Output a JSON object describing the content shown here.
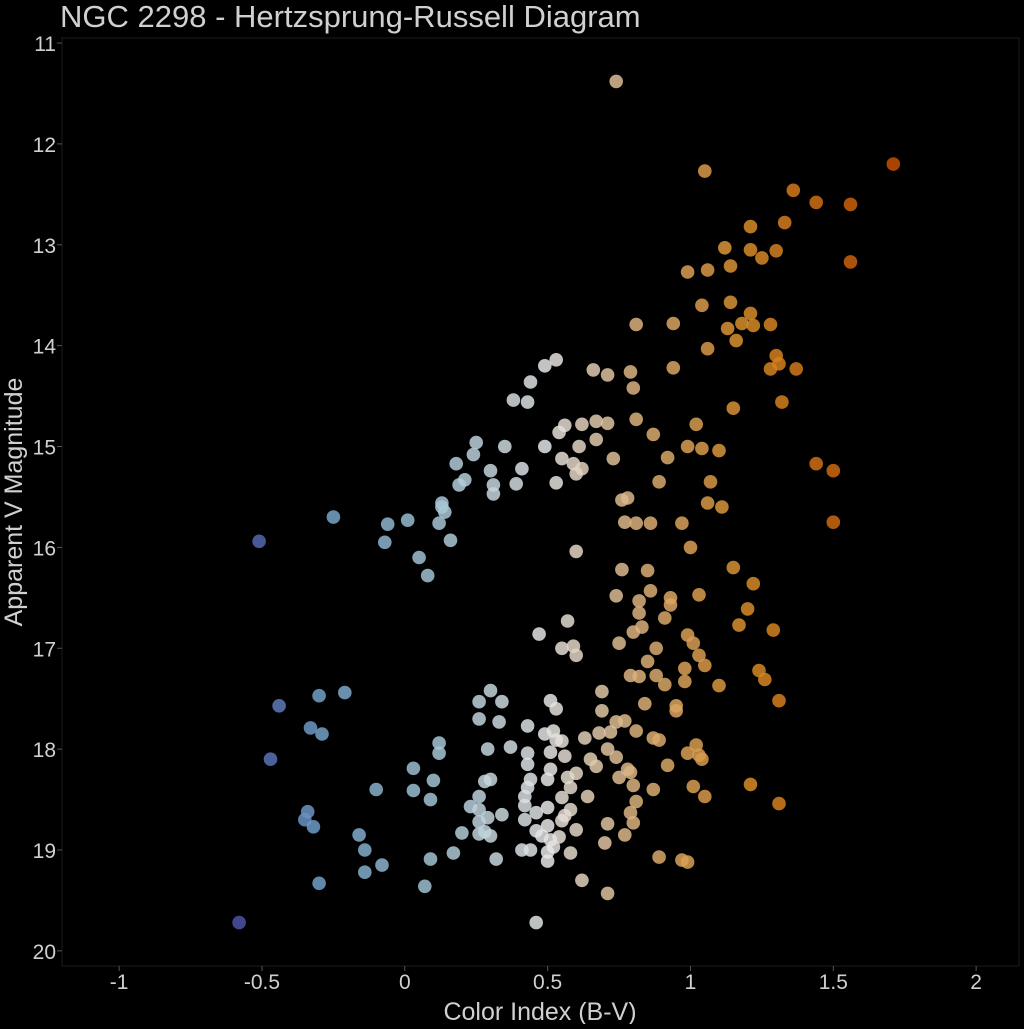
{
  "chart_data": {
    "type": "scatter",
    "title": "NGC 2298 - Hertzsprung-Russell Diagram",
    "xlabel": "Color Index (B-V)",
    "ylabel": "Apparent V Magnitude",
    "xlim": [
      -1.2,
      2.15
    ],
    "ylim": [
      20.15,
      10.95
    ],
    "y_inverted": true,
    "grid": false,
    "x_ticks": [
      -1,
      -0.5,
      0,
      0.5,
      1,
      1.5,
      2
    ],
    "x_tick_labels": [
      "-1",
      "-0.5",
      "0",
      "0.5",
      "1",
      "1.5",
      "2"
    ],
    "y_ticks": [
      11,
      12,
      13,
      14,
      15,
      16,
      17,
      18,
      19,
      20
    ],
    "y_tick_labels": [
      "11",
      "12",
      "13",
      "14",
      "15",
      "16",
      "17",
      "18",
      "19",
      "20"
    ],
    "colors": {
      "background": "#000000",
      "text": "#d0d0d0",
      "frame": "#1c1c1c"
    },
    "points": [
      [
        0.74,
        11.38
      ],
      [
        1.71,
        12.2
      ],
      [
        1.05,
        12.27
      ],
      [
        1.36,
        12.46
      ],
      [
        1.44,
        12.58
      ],
      [
        1.56,
        12.6
      ],
      [
        1.33,
        12.78
      ],
      [
        1.21,
        12.82
      ],
      [
        1.12,
        13.03
      ],
      [
        1.21,
        13.05
      ],
      [
        1.3,
        13.06
      ],
      [
        1.25,
        13.13
      ],
      [
        1.56,
        13.17
      ],
      [
        0.99,
        13.27
      ],
      [
        1.06,
        13.25
      ],
      [
        1.14,
        13.21
      ],
      [
        1.04,
        13.6
      ],
      [
        1.14,
        13.57
      ],
      [
        1.21,
        13.68
      ],
      [
        0.81,
        13.79
      ],
      [
        0.94,
        13.78
      ],
      [
        1.13,
        13.83
      ],
      [
        1.18,
        13.78
      ],
      [
        1.22,
        13.8
      ],
      [
        1.28,
        13.79
      ],
      [
        1.16,
        13.95
      ],
      [
        1.06,
        14.03
      ],
      [
        0.53,
        14.14
      ],
      [
        0.49,
        14.2
      ],
      [
        0.66,
        14.24
      ],
      [
        0.71,
        14.29
      ],
      [
        0.79,
        14.26
      ],
      [
        0.94,
        14.22
      ],
      [
        1.3,
        14.1
      ],
      [
        1.31,
        14.18
      ],
      [
        1.28,
        14.23
      ],
      [
        1.37,
        14.23
      ],
      [
        0.44,
        14.36
      ],
      [
        0.8,
        14.42
      ],
      [
        0.38,
        14.54
      ],
      [
        0.43,
        14.56
      ],
      [
        1.32,
        14.56
      ],
      [
        1.15,
        14.62
      ],
      [
        0.56,
        14.79
      ],
      [
        0.62,
        14.78
      ],
      [
        0.67,
        14.75
      ],
      [
        0.71,
        14.77
      ],
      [
        0.81,
        14.73
      ],
      [
        0.87,
        14.88
      ],
      [
        1.02,
        14.78
      ],
      [
        0.54,
        14.86
      ],
      [
        0.25,
        14.96
      ],
      [
        0.35,
        15.0
      ],
      [
        0.49,
        15.0
      ],
      [
        0.61,
        15.0
      ],
      [
        0.67,
        14.93
      ],
      [
        0.99,
        15.0
      ],
      [
        1.04,
        15.02
      ],
      [
        1.1,
        15.04
      ],
      [
        0.24,
        15.08
      ],
      [
        0.55,
        15.12
      ],
      [
        0.41,
        15.22
      ],
      [
        0.59,
        15.17
      ],
      [
        0.62,
        15.22
      ],
      [
        0.73,
        15.12
      ],
      [
        0.92,
        15.11
      ],
      [
        0.18,
        15.17
      ],
      [
        0.3,
        15.24
      ],
      [
        0.6,
        15.27
      ],
      [
        0.21,
        15.33
      ],
      [
        0.31,
        15.38
      ],
      [
        0.19,
        15.38
      ],
      [
        0.39,
        15.37
      ],
      [
        0.53,
        15.36
      ],
      [
        0.89,
        15.35
      ],
      [
        1.07,
        15.35
      ],
      [
        1.44,
        15.17
      ],
      [
        1.5,
        15.24
      ],
      [
        0.31,
        15.47
      ],
      [
        0.78,
        15.51
      ],
      [
        0.76,
        15.53
      ],
      [
        0.13,
        15.56
      ],
      [
        0.13,
        15.6
      ],
      [
        -0.25,
        15.7
      ],
      [
        0.01,
        15.73
      ],
      [
        0.12,
        15.76
      ],
      [
        0.14,
        15.65
      ],
      [
        -0.06,
        15.77
      ],
      [
        0.77,
        15.75
      ],
      [
        0.81,
        15.76
      ],
      [
        0.86,
        15.76
      ],
      [
        0.97,
        15.76
      ],
      [
        1.06,
        15.56
      ],
      [
        1.11,
        15.6
      ],
      [
        1.5,
        15.75
      ],
      [
        -0.51,
        15.94
      ],
      [
        -0.07,
        15.95
      ],
      [
        0.16,
        15.93
      ],
      [
        0.6,
        16.04
      ],
      [
        1.0,
        16.0
      ],
      [
        0.05,
        16.1
      ],
      [
        0.08,
        16.28
      ],
      [
        0.76,
        16.22
      ],
      [
        0.85,
        16.23
      ],
      [
        1.15,
        16.2
      ],
      [
        1.22,
        16.36
      ],
      [
        0.86,
        16.43
      ],
      [
        0.74,
        16.48
      ],
      [
        0.82,
        16.53
      ],
      [
        0.93,
        16.5
      ],
      [
        1.03,
        16.47
      ],
      [
        1.2,
        16.61
      ],
      [
        0.93,
        16.57
      ],
      [
        0.57,
        16.73
      ],
      [
        0.82,
        16.65
      ],
      [
        0.91,
        16.7
      ],
      [
        1.17,
        16.77
      ],
      [
        0.83,
        16.79
      ],
      [
        0.47,
        16.86
      ],
      [
        0.8,
        16.84
      ],
      [
        0.99,
        16.87
      ],
      [
        0.55,
        17.0
      ],
      [
        0.59,
        16.98
      ],
      [
        0.6,
        17.07
      ],
      [
        0.75,
        16.95
      ],
      [
        0.88,
        17.0
      ],
      [
        1.01,
        16.95
      ],
      [
        1.29,
        16.82
      ],
      [
        1.03,
        17.07
      ],
      [
        0.85,
        17.13
      ],
      [
        0.98,
        17.2
      ],
      [
        1.05,
        17.17
      ],
      [
        1.24,
        17.22
      ],
      [
        0.79,
        17.27
      ],
      [
        0.82,
        17.28
      ],
      [
        0.88,
        17.27
      ],
      [
        0.91,
        17.36
      ],
      [
        0.98,
        17.33
      ],
      [
        1.1,
        17.37
      ],
      [
        1.26,
        17.31
      ],
      [
        -0.21,
        17.44
      ],
      [
        0.3,
        17.42
      ],
      [
        0.69,
        17.43
      ],
      [
        -0.3,
        17.47
      ],
      [
        0.84,
        17.55
      ],
      [
        0.51,
        17.52
      ],
      [
        -0.44,
        17.57
      ],
      [
        0.26,
        17.53
      ],
      [
        0.34,
        17.53
      ],
      [
        0.53,
        17.6
      ],
      [
        0.69,
        17.62
      ],
      [
        0.95,
        17.57
      ],
      [
        0.95,
        17.62
      ],
      [
        1.31,
        17.52
      ],
      [
        0.26,
        17.7
      ],
      [
        0.33,
        17.73
      ],
      [
        0.43,
        17.77
      ],
      [
        0.74,
        17.73
      ],
      [
        0.77,
        17.72
      ],
      [
        -0.33,
        17.79
      ],
      [
        -0.29,
        17.85
      ],
      [
        0.49,
        17.85
      ],
      [
        0.52,
        17.82
      ],
      [
        0.68,
        17.84
      ],
      [
        0.72,
        17.83
      ],
      [
        0.81,
        17.82
      ],
      [
        0.55,
        17.92
      ],
      [
        0.53,
        17.91
      ],
      [
        0.63,
        17.89
      ],
      [
        0.87,
        17.89
      ],
      [
        0.89,
        17.91
      ],
      [
        0.12,
        17.94
      ],
      [
        0.29,
        18.0
      ],
      [
        0.37,
        17.98
      ],
      [
        1.02,
        17.96
      ],
      [
        0.43,
        18.04
      ],
      [
        0.51,
        18.03
      ],
      [
        0.56,
        18.07
      ],
      [
        0.71,
        18.0
      ],
      [
        0.74,
        18.08
      ],
      [
        0.99,
        18.04
      ],
      [
        1.03,
        18.06
      ],
      [
        1.04,
        18.1
      ],
      [
        -0.47,
        18.1
      ],
      [
        0.12,
        18.04
      ],
      [
        0.43,
        18.15
      ],
      [
        0.65,
        18.1
      ],
      [
        0.67,
        18.17
      ],
      [
        0.78,
        18.2
      ],
      [
        0.92,
        18.16
      ],
      [
        0.03,
        18.19
      ],
      [
        0.51,
        18.2
      ],
      [
        0.6,
        18.24
      ],
      [
        0.79,
        18.23
      ],
      [
        0.75,
        18.28
      ],
      [
        0.44,
        18.3
      ],
      [
        0.1,
        18.31
      ],
      [
        0.28,
        18.32
      ],
      [
        0.3,
        18.3
      ],
      [
        0.5,
        18.3
      ],
      [
        0.57,
        18.28
      ],
      [
        0.43,
        18.38
      ],
      [
        0.58,
        18.38
      ],
      [
        0.8,
        18.36
      ],
      [
        0.87,
        18.4
      ],
      [
        1.01,
        18.37
      ],
      [
        1.21,
        18.35
      ],
      [
        1.05,
        18.47
      ],
      [
        -0.1,
        18.4
      ],
      [
        0.03,
        18.41
      ],
      [
        0.09,
        18.5
      ],
      [
        0.26,
        18.47
      ],
      [
        0.42,
        18.47
      ],
      [
        0.55,
        18.48
      ],
      [
        0.64,
        18.47
      ],
      [
        0.81,
        18.52
      ],
      [
        0.42,
        18.56
      ],
      [
        0.23,
        18.57
      ],
      [
        0.26,
        18.6
      ],
      [
        0.34,
        18.65
      ],
      [
        0.5,
        18.58
      ],
      [
        0.58,
        18.6
      ],
      [
        1.31,
        18.54
      ],
      [
        -0.34,
        18.62
      ],
      [
        0.29,
        18.68
      ],
      [
        0.42,
        18.7
      ],
      [
        0.46,
        18.63
      ],
      [
        0.56,
        18.66
      ],
      [
        0.55,
        18.71
      ],
      [
        0.79,
        18.63
      ],
      [
        -0.35,
        18.7
      ],
      [
        -0.32,
        18.77
      ],
      [
        0.26,
        18.72
      ],
      [
        0.5,
        18.76
      ],
      [
        0.6,
        18.8
      ],
      [
        0.71,
        18.74
      ],
      [
        0.8,
        18.73
      ],
      [
        0.2,
        18.83
      ],
      [
        0.28,
        18.82
      ],
      [
        0.26,
        18.84
      ],
      [
        0.3,
        18.86
      ],
      [
        0.46,
        18.81
      ],
      [
        0.48,
        18.86
      ],
      [
        0.54,
        18.87
      ],
      [
        0.77,
        18.85
      ],
      [
        -0.16,
        18.85
      ],
      [
        0.51,
        18.9
      ],
      [
        0.52,
        18.97
      ],
      [
        0.41,
        19.0
      ],
      [
        0.44,
        19.0
      ],
      [
        0.5,
        19.02
      ],
      [
        0.58,
        19.03
      ],
      [
        0.17,
        19.03
      ],
      [
        0.7,
        18.93
      ],
      [
        -0.14,
        19.0
      ],
      [
        0.09,
        19.09
      ],
      [
        0.32,
        19.09
      ],
      [
        0.89,
        19.07
      ],
      [
        0.97,
        19.1
      ],
      [
        0.99,
        19.12
      ],
      [
        -0.08,
        19.15
      ],
      [
        -0.14,
        19.22
      ],
      [
        0.5,
        19.11
      ],
      [
        0.62,
        19.3
      ],
      [
        -0.3,
        19.33
      ],
      [
        0.07,
        19.36
      ],
      [
        0.71,
        19.43
      ],
      [
        -0.58,
        19.72
      ],
      [
        0.46,
        19.72
      ]
    ]
  }
}
